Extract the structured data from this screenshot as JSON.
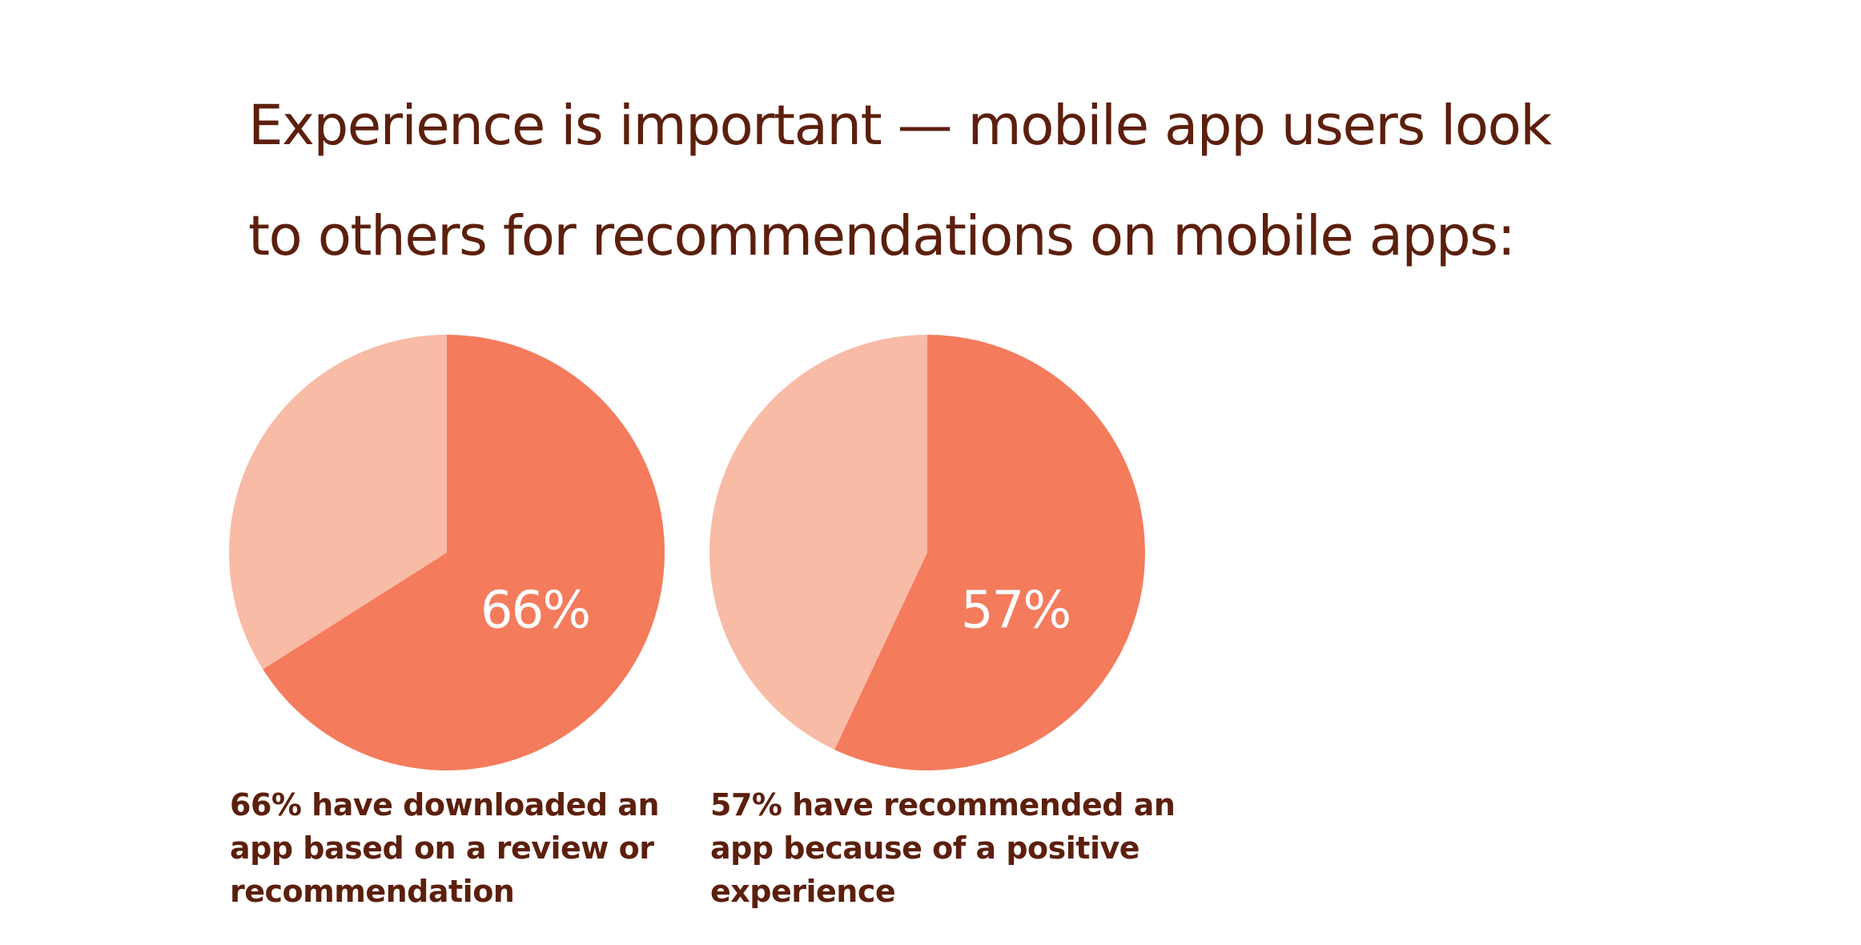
{
  "colors": {
    "text": "#5c1f0c",
    "slice_main": "#f47b5c",
    "slice_rest": "#f8bba6",
    "pct_label": "#ffffff"
  },
  "headline": {
    "line1": "Experience is important — mobile app users look",
    "line2": "to others for recommendations on mobile apps:"
  },
  "chart_data": [
    {
      "type": "pie",
      "slices": [
        {
          "label": "66%",
          "value": 66
        },
        {
          "label": "",
          "value": 34
        }
      ],
      "center_label": "66%",
      "caption": [
        "66% have downloaded an",
        "app based on a review or",
        "recommendation"
      ]
    },
    {
      "type": "pie",
      "slices": [
        {
          "label": "57%",
          "value": 57
        },
        {
          "label": "",
          "value": 43
        }
      ],
      "center_label": "57%",
      "caption": [
        "57% have recommended an",
        "app because of a positive",
        "experience"
      ]
    }
  ]
}
